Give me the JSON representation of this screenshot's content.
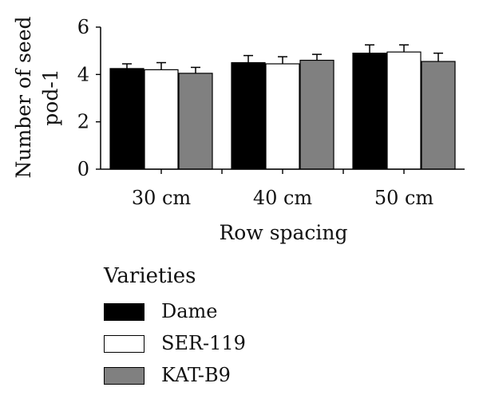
{
  "chart_data": {
    "type": "bar",
    "categories": [
      "30 cm",
      "40 cm",
      "50 cm"
    ],
    "series": [
      {
        "name": "Dame",
        "color": "#000000",
        "values": [
          4.25,
          4.5,
          4.9
        ],
        "errors": [
          0.2,
          0.3,
          0.35
        ]
      },
      {
        "name": "SER-119",
        "color": "#ffffff",
        "values": [
          4.2,
          4.45,
          4.95
        ],
        "errors": [
          0.3,
          0.3,
          0.3
        ]
      },
      {
        "name": "KAT-B9",
        "color": "#808080",
        "values": [
          4.05,
          4.6,
          4.55
        ],
        "errors": [
          0.25,
          0.25,
          0.35
        ]
      }
    ],
    "title": "",
    "xlabel": "Row spacing",
    "ylabel_lines": [
      "Number of seed",
      "pod-1"
    ],
    "ylim": [
      0,
      6
    ],
    "yticks": [
      0,
      2,
      4,
      6
    ],
    "grid": false,
    "legend": {
      "title": "Varieties",
      "placement": "bottom"
    }
  }
}
